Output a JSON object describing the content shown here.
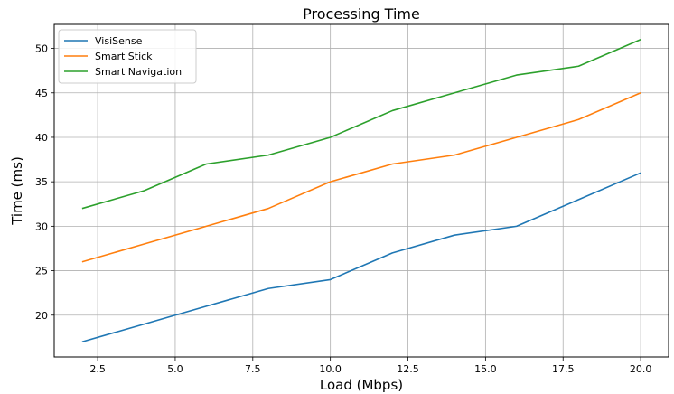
{
  "chart_data": {
    "type": "line",
    "title": "Processing Time",
    "xlabel": "Load (Mbps)",
    "ylabel": "Time (ms)",
    "xlim": [
      1.1,
      20.9
    ],
    "ylim": [
      15.3,
      52.7
    ],
    "xticks": [
      "2.5",
      "5.0",
      "7.5",
      "10.0",
      "12.5",
      "15.0",
      "17.5",
      "20.0"
    ],
    "xtick_values": [
      2.5,
      5.0,
      7.5,
      10.0,
      12.5,
      15.0,
      17.5,
      20.0
    ],
    "yticks": [
      "20",
      "25",
      "30",
      "35",
      "40",
      "45",
      "50"
    ],
    "ytick_values": [
      20,
      25,
      30,
      35,
      40,
      45,
      50
    ],
    "grid": true,
    "legend": "top-left",
    "x": [
      2,
      4,
      6,
      8,
      10,
      12,
      14,
      16,
      18,
      20
    ],
    "series": [
      {
        "name": "VisiSense",
        "color": "#1f77b4",
        "values": [
          17,
          19,
          21,
          23,
          24,
          27,
          29,
          30,
          33,
          36
        ]
      },
      {
        "name": "Smart Stick",
        "color": "#ff7f0e",
        "values": [
          26,
          28,
          30,
          32,
          35,
          37,
          38,
          40,
          42,
          45
        ]
      },
      {
        "name": "Smart Navigation",
        "color": "#2ca02c",
        "values": [
          32,
          34,
          37,
          38,
          40,
          43,
          45,
          47,
          48,
          51
        ]
      }
    ]
  }
}
